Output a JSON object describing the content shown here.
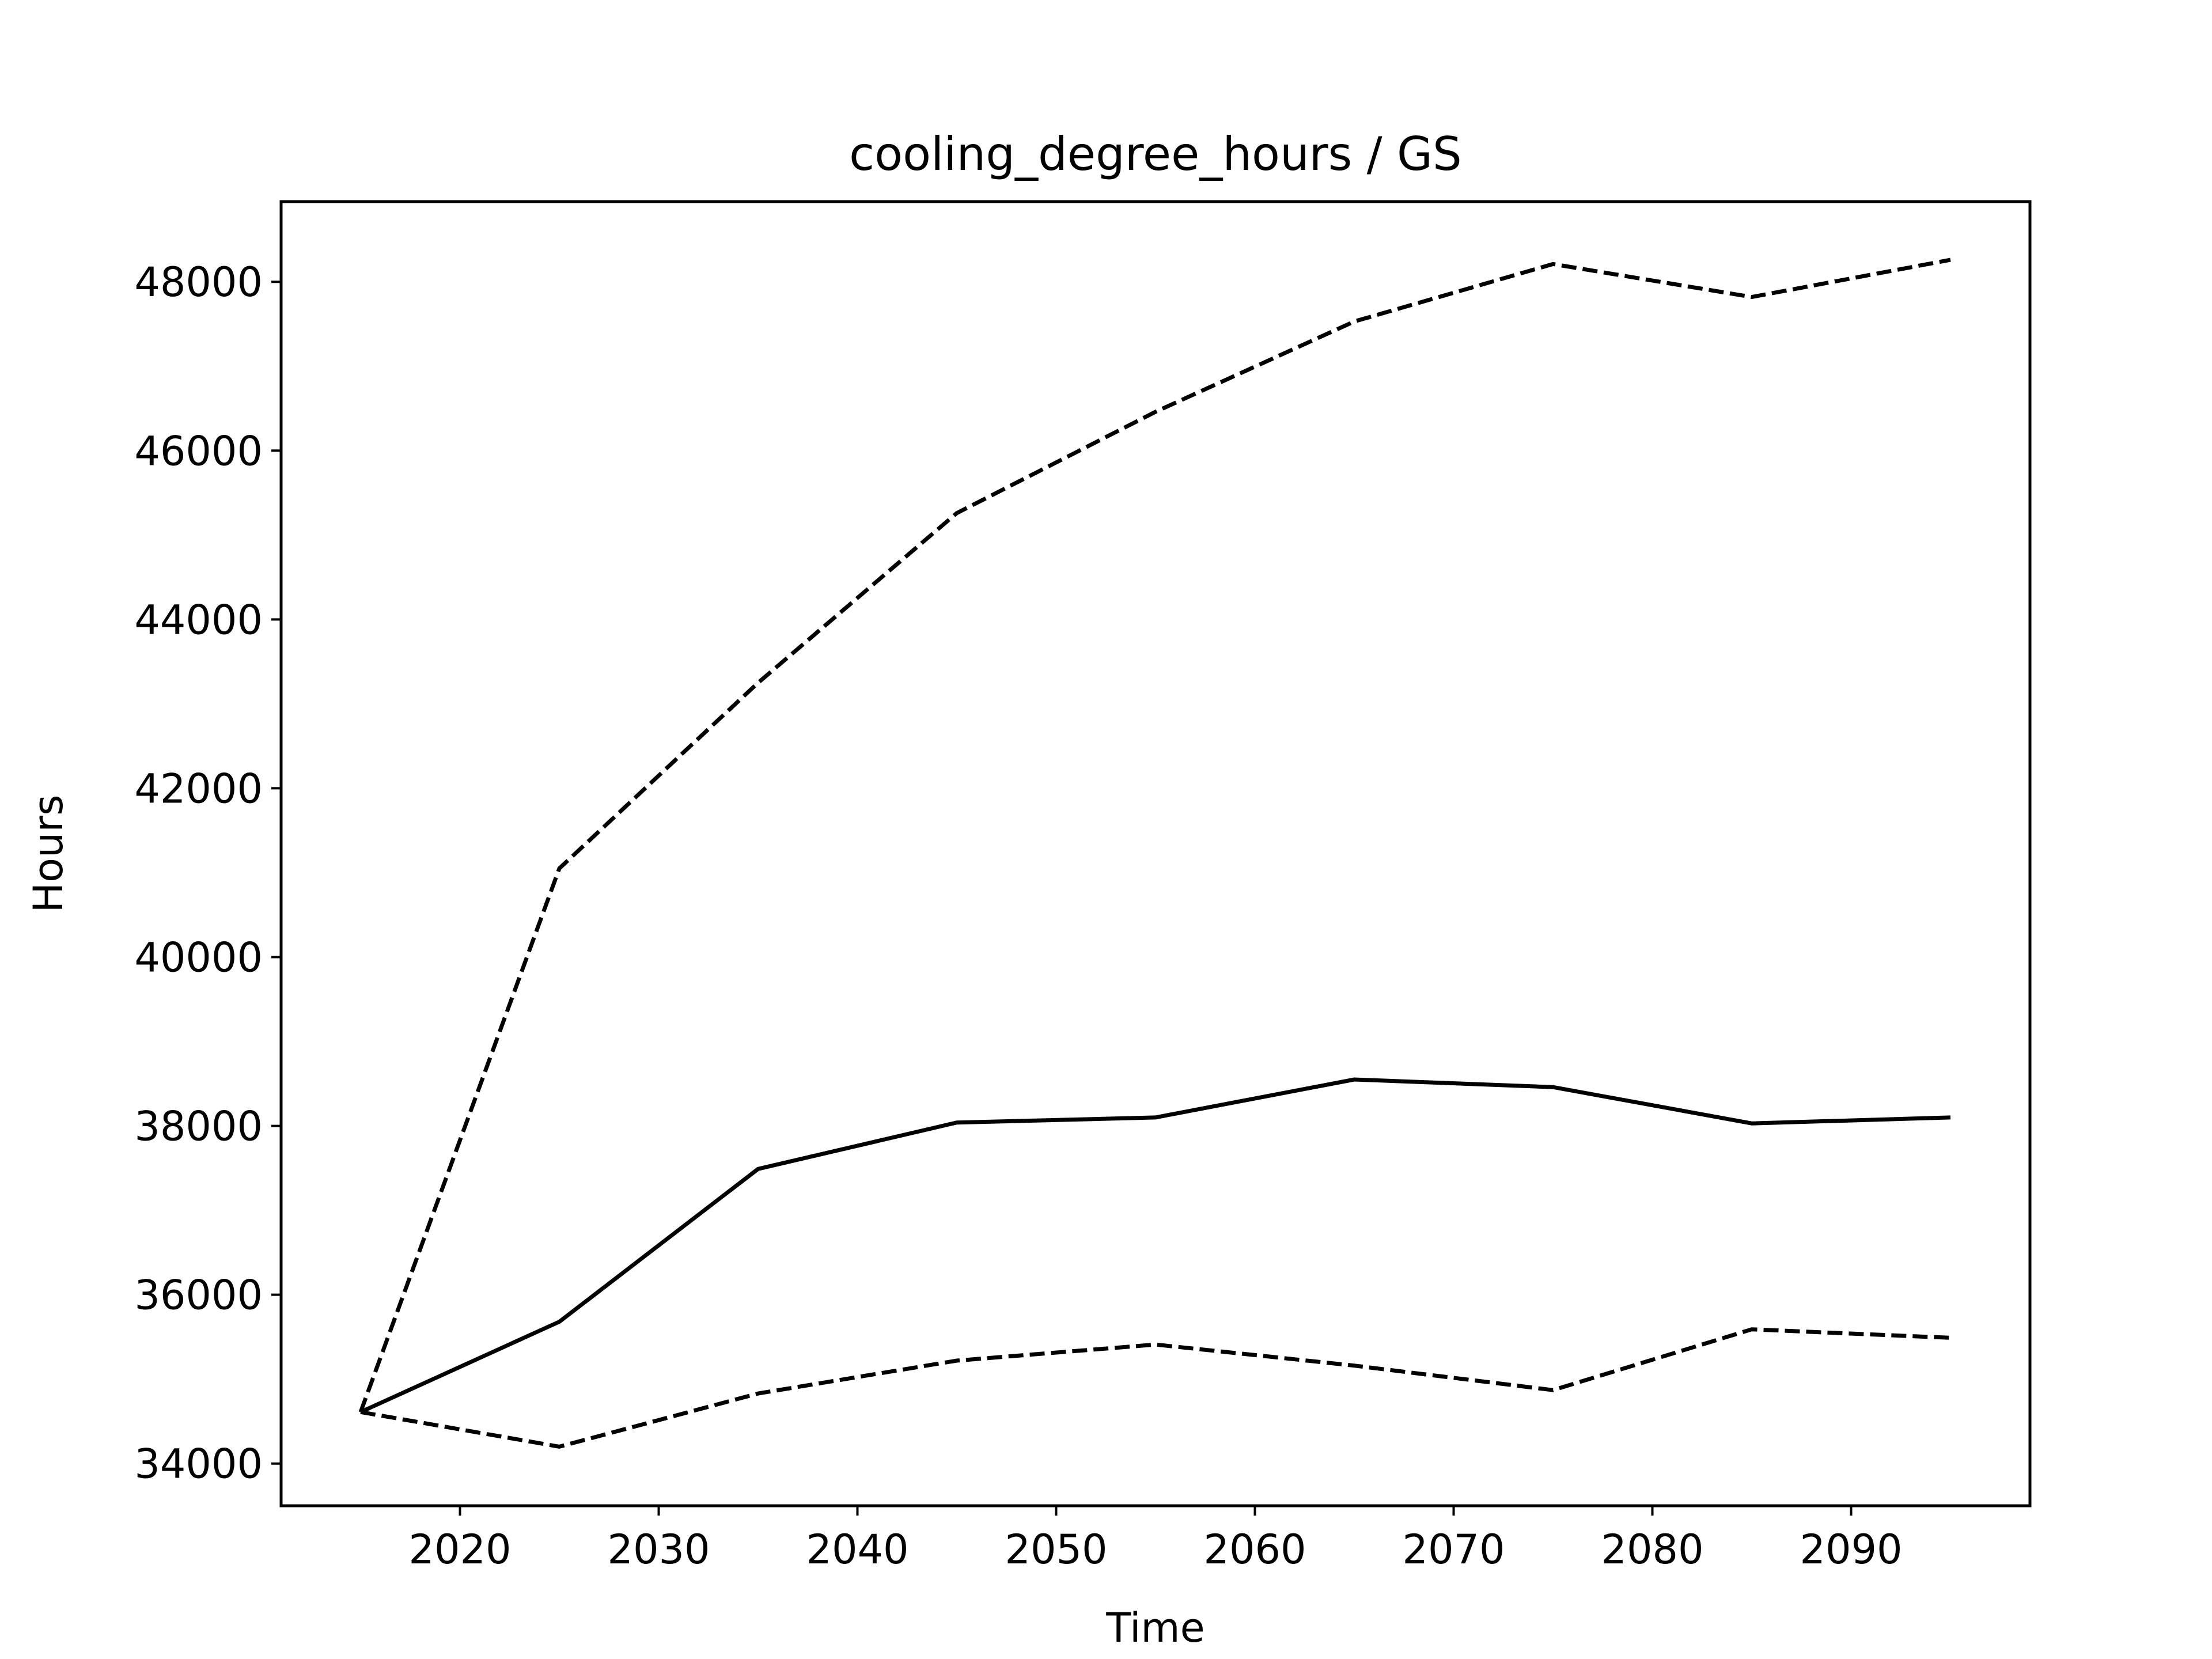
{
  "chart_data": {
    "type": "line",
    "title": "cooling_degree_hours / GS",
    "xlabel": "Time",
    "ylabel": "Hours",
    "xlim": [
      2011,
      2099
    ],
    "ylim": [
      33500,
      48950
    ],
    "x_ticks": [
      2020,
      2030,
      2040,
      2050,
      2060,
      2070,
      2080,
      2090
    ],
    "y_ticks": [
      34000,
      36000,
      38000,
      40000,
      42000,
      44000,
      46000,
      48000
    ],
    "grid": false,
    "legend": "none",
    "x": [
      2015,
      2025,
      2035,
      2045,
      2055,
      2065,
      2075,
      2085,
      2095
    ],
    "series": [
      {
        "style": "solid",
        "color": "#000000",
        "values": [
          34610,
          35680,
          37490,
          38040,
          38100,
          38550,
          38460,
          38030,
          38100
        ]
      },
      {
        "style": "dashed",
        "color": "#000000",
        "values": [
          34610,
          41050,
          43250,
          45260,
          46460,
          47530,
          48210,
          47820,
          48260
        ]
      },
      {
        "style": "dashed",
        "color": "#000000",
        "values": [
          34610,
          34200,
          34830,
          35220,
          35410,
          35160,
          34870,
          35590,
          35490
        ]
      }
    ]
  }
}
